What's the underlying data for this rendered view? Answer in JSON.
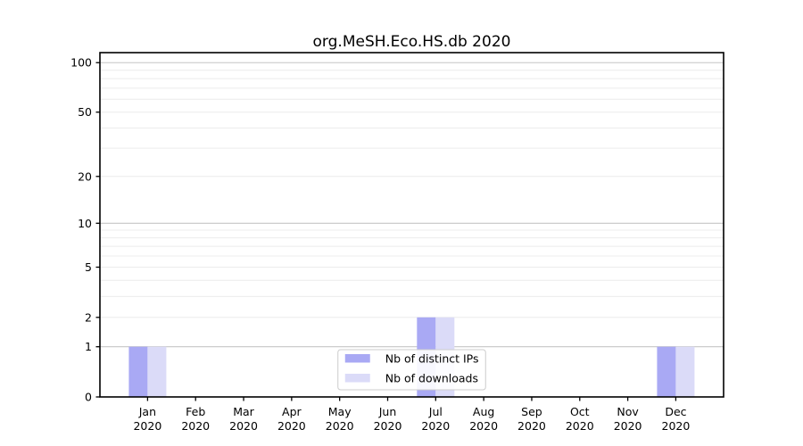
{
  "chart_data": {
    "type": "bar",
    "title": "org.MeSH.Eco.HS.db 2020",
    "year_label": "2020",
    "categories": [
      "Jan",
      "Feb",
      "Mar",
      "Apr",
      "May",
      "Jun",
      "Jul",
      "Aug",
      "Sep",
      "Oct",
      "Nov",
      "Dec"
    ],
    "series": [
      {
        "name": "Nb of distinct IPs",
        "color": "#a9a9f4",
        "values": [
          1,
          0,
          0,
          0,
          0,
          0,
          2,
          0,
          0,
          0,
          0,
          1
        ]
      },
      {
        "name": "Nb of downloads",
        "color": "#dbdbf8",
        "values": [
          1,
          0,
          0,
          0,
          0,
          0,
          2,
          0,
          0,
          0,
          0,
          1
        ]
      }
    ],
    "yscale": "log1p",
    "ylim": [
      0,
      115
    ],
    "yticks": [
      0,
      1,
      2,
      5,
      10,
      20,
      50,
      100
    ],
    "gridlines": {
      "major": [
        1,
        10,
        100
      ],
      "minor": [
        2,
        3,
        4,
        5,
        6,
        7,
        8,
        9,
        20,
        30,
        40,
        50,
        60,
        70,
        80,
        90
      ],
      "major_color": "#c6c6c6",
      "minor_color": "#ececec"
    },
    "legend": {
      "position": "lower center"
    },
    "axis_color": "#000000",
    "background_color": "#ffffff",
    "grid": true
  }
}
